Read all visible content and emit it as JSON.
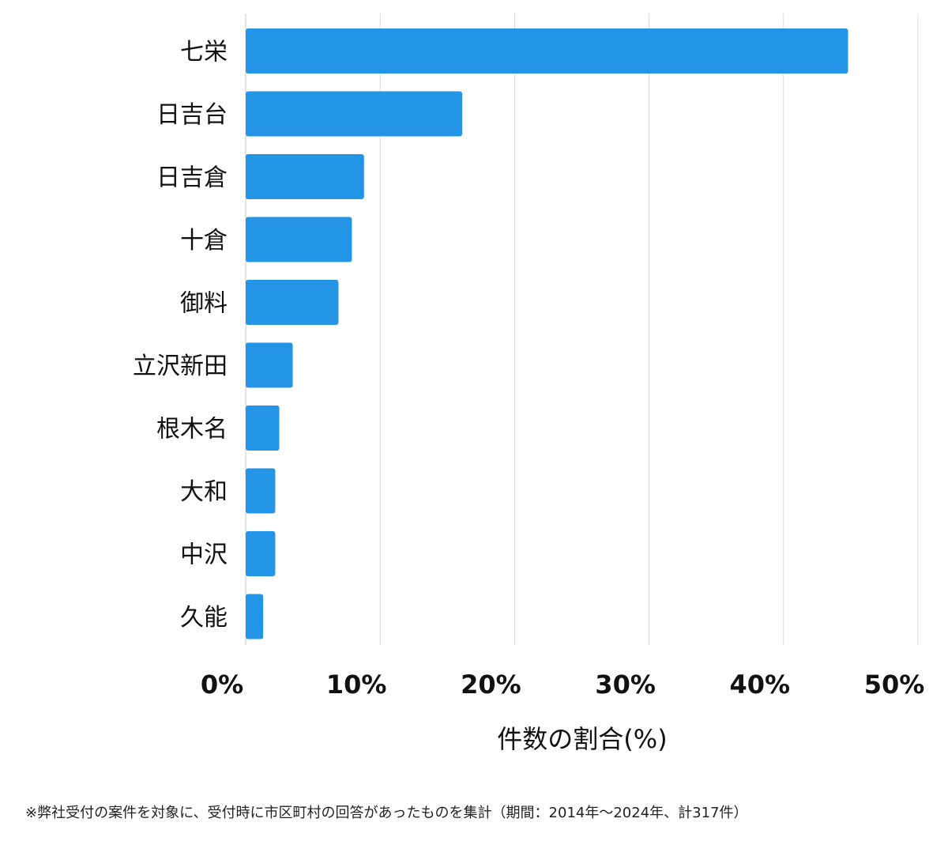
{
  "chart_data": {
    "type": "bar",
    "orientation": "horizontal",
    "categories": [
      "七栄",
      "日吉台",
      "日吉倉",
      "十倉",
      "御料",
      "立沢新田",
      "根木名",
      "大和",
      "中沢",
      "久能"
    ],
    "values": [
      44.8,
      16.1,
      8.8,
      7.9,
      6.9,
      3.5,
      2.5,
      2.2,
      2.2,
      1.3
    ],
    "xlim": [
      0,
      50
    ],
    "ticks": [
      0,
      10,
      20,
      30,
      40,
      50
    ],
    "tick_labels": [
      "0%",
      "10%",
      "20%",
      "30%",
      "40%",
      "50%"
    ],
    "xlabel": "件数の割合(%)",
    "ylabel": "",
    "grid": true,
    "bar_color": "#2494e6",
    "grid_color": "#d9d9d9"
  },
  "footnote": "※弊社受付の案件を対象に、受付時に市区町村の回答があったものを集計（期間：2014年〜2024年、計317件）"
}
